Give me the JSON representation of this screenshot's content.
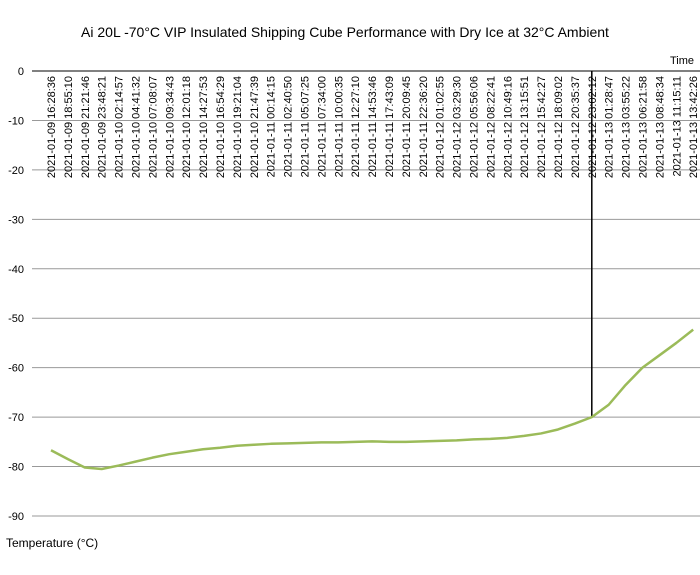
{
  "chart_data": {
    "type": "line",
    "title": "Ai 20L -70°C VIP Insulated Shipping Cube Performance with Dry Ice at 32°C Ambient",
    "x_label": "Time",
    "y_label": "Temperature (°C)",
    "categories": [
      "2021-01-09 16:28:36",
      "2021-01-09 18:55:10",
      "2021-01-09 21:21:46",
      "2021-01-09 23:48:21",
      "2021-01-10 02:14:57",
      "2021-01-10 04:41:32",
      "2021-01-10 07:08:07",
      "2021-01-10 09:34:43",
      "2021-01-10 12:01:18",
      "2021-01-10 14:27:53",
      "2021-01-10 16:54:29",
      "2021-01-10 19:21:04",
      "2021-01-10 21:47:39",
      "2021-01-11 00:14:15",
      "2021-01-11 02:40:50",
      "2021-01-11 05:07:25",
      "2021-01-11 07:34:00",
      "2021-01-11 10:00:35",
      "2021-01-11 12:27:10",
      "2021-01-11 14:53:46",
      "2021-01-11 17:43:09",
      "2021-01-11 20:09:45",
      "2021-01-11 22:36:20",
      "2021-01-12 01:02:55",
      "2021-01-12 03:29:30",
      "2021-01-12 05:56:06",
      "2021-01-12 08:22:41",
      "2021-01-12 10:49:16",
      "2021-01-12 13:15:51",
      "2021-01-12 15:42:27",
      "2021-01-12 18:09:02",
      "2021-01-12 20:35:37",
      "2021-01-12 23:02:12",
      "2021-01-13 01:28:47",
      "2021-01-13 03:55:22",
      "2021-01-13 06:21:58",
      "2021-01-13 08:48:34",
      "2021-01-13 11:15:11",
      "2021-01-13 13:42:26"
    ],
    "series": [
      {
        "name": "Temperature",
        "color": "#9bbb59",
        "values": [
          -76.7,
          -78.5,
          -80.2,
          -80.5,
          -79.8,
          -79,
          -78.2,
          -77.5,
          -77,
          -76.5,
          -76.2,
          -75.8,
          -75.6,
          -75.4,
          -75.3,
          -75.2,
          -75.1,
          -75.1,
          -75,
          -74.9,
          -75,
          -75,
          -74.9,
          -74.8,
          -74.7,
          -74.5,
          -74.4,
          -74.2,
          -73.8,
          -73.3,
          -72.5,
          -71.3,
          -70,
          -67.5,
          -63.5,
          -60,
          -57.5,
          -55,
          -52.3
        ]
      }
    ],
    "vline_index": 32,
    "ylim": [
      -90,
      0
    ],
    "yticks": [
      0,
      -10,
      -20,
      -30,
      -40,
      -50,
      -60,
      -70,
      -80,
      -90
    ],
    "grid": true
  }
}
